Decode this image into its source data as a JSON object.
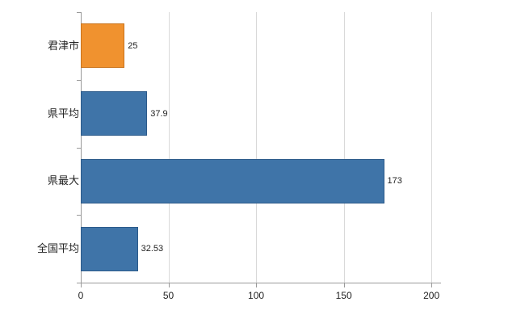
{
  "chart_data": {
    "type": "bar",
    "orientation": "horizontal",
    "title": "",
    "xlabel": "",
    "ylabel": "",
    "xlim": [
      0,
      205
    ],
    "x_ticks": [
      0,
      50,
      100,
      150,
      200
    ],
    "grid": true,
    "legend": "none",
    "categories": [
      "君津市",
      "県平均",
      "県最大",
      "全国平均"
    ],
    "values": [
      25,
      37.9,
      173,
      32.53
    ],
    "value_labels": [
      "25",
      "37.9",
      "173",
      "32.53"
    ],
    "bar_colors": [
      "#f0922f",
      "#3f74a8",
      "#3f74a8",
      "#3f74a8"
    ],
    "bar_border_colors": [
      "#c9731c",
      "#2c5a8a",
      "#2c5a8a",
      "#2c5a8a"
    ],
    "colors": {
      "highlight_orange": "#f0922f",
      "series_blue": "#3f74a8",
      "gridline": "#d9d9d9",
      "axis": "#9a9a9a",
      "text": "#222222"
    }
  }
}
